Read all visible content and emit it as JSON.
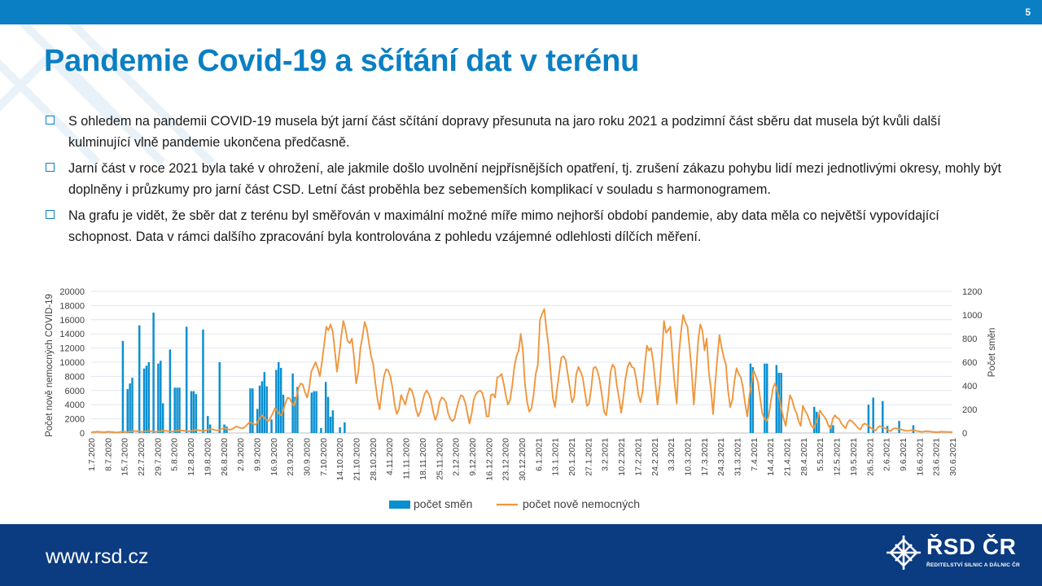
{
  "slide": {
    "page_number": "5",
    "title": "Pandemie Covid-19 a sčítání dat v terénu"
  },
  "bullets": [
    "S ohledem na pandemii COVID-19 musela být jarní část sčítání dopravy přesunuta na jaro roku 2021 a podzimní část sběru dat musela být kvůli další kulminující vlně pandemie ukončena předčasně.",
    "Jarní část v roce 2021 byla také v ohrožení, ale jakmile došlo uvolnění nejpřísnějších opatření, tj. zrušení zákazu pohybu lidí mezi jednotlivými okresy, mohly být doplněny i průzkumy pro jarní část CSD. Letní část proběhla bez sebemenších komplikací v souladu s harmonogramem.",
    "Na grafu je vidět, že sběr dat z terénu byl směřován v maximální možné míře mimo nejhorší období pandemie, aby data měla co největší vypovídající schopnost. Data v rámci dalšího zpracování byla kontrolována z pohledu vzájemné odlehlosti dílčích měření."
  ],
  "chart_data": {
    "type": "bar",
    "left_axis": {
      "label": "Počet nově nemocných COVID-19",
      "ticks": [
        "20000",
        "18000",
        "16000",
        "14000",
        "12000",
        "10000",
        "8000",
        "6000",
        "4000",
        "2000",
        "0"
      ],
      "range": [
        0,
        20000
      ]
    },
    "right_axis": {
      "label": "Počet směn",
      "ticks": [
        "1200",
        "1000",
        "800",
        "600",
        "400",
        "200",
        "0"
      ],
      "range": [
        0,
        1200
      ]
    },
    "x_labels": [
      "1.7.2020",
      "8.7.2020",
      "15.7.2020",
      "22.7.2020",
      "29.7.2020",
      "5.8.2020",
      "12.8.2020",
      "19.8.2020",
      "26.8.2020",
      "2.9.2020",
      "9.9.2020",
      "16.9.2020",
      "23.9.2020",
      "30.9.2020",
      "7.10.2020",
      "14.10.2020",
      "21.10.2020",
      "28.10.2020",
      "4.11.2020",
      "11.11.2020",
      "18.11.2020",
      "25.11.2020",
      "2.12.2020",
      "9.12.2020",
      "16.12.2020",
      "23.12.2020",
      "30.12.2020",
      "6.1.2021",
      "13.1.2021",
      "20.1.2021",
      "27.1.2021",
      "3.2.2021",
      "10.2.2021",
      "17.2.2021",
      "24.2.2021",
      "3.3.2021",
      "10.3.2021",
      "17.3.2021",
      "24.3.2021",
      "31.3.2021",
      "7.4.2021",
      "14.4.2021",
      "21.4.2021",
      "28.4.2021",
      "5.5.2021",
      "12.5.2021",
      "19.5.2021",
      "26.5.2021",
      "2.6.2021",
      "9.6.2021",
      "16.6.2021",
      "23.6.2021",
      "30.6.2021"
    ],
    "grid": true,
    "legend_position": "bottom",
    "legend": [
      {
        "name": "počet směn",
        "color": "#0a8fd0"
      },
      {
        "name": "počet nově nemocných",
        "color": "#f0963c"
      }
    ],
    "bars_x_values": [
      0,
      0,
      0,
      0,
      0,
      0,
      0,
      0,
      0,
      0,
      0,
      0,
      0,
      13000,
      0,
      6200,
      7000,
      7800,
      0,
      0,
      15200,
      0,
      9100,
      9500,
      10000,
      0,
      17000,
      0,
      9800,
      10200,
      4200,
      0,
      0,
      11800,
      0,
      6400,
      6400,
      6400,
      0,
      0,
      15000,
      0,
      5900,
      5900,
      5500,
      0,
      0,
      14600,
      0,
      2400,
      1200,
      0,
      0,
      0,
      10000,
      0,
      1200,
      900,
      0,
      0,
      0,
      0,
      0,
      0,
      0,
      0,
      0,
      6300,
      6300,
      0,
      3400,
      6700,
      7300,
      8600,
      6600,
      0,
      1900,
      0,
      8900,
      10000,
      9200,
      5400,
      0,
      0,
      0,
      8400,
      5100,
      6500,
      0,
      0,
      0,
      0,
      0,
      5700,
      5900,
      5900,
      0,
      700,
      0,
      7200,
      5100,
      2300,
      3200,
      0,
      0,
      800,
      0,
      1500
    ],
    "bars_x_values_apr_jun": [
      9800,
      9300,
      0,
      0,
      0,
      0,
      9800,
      9800,
      0,
      0,
      0,
      9600,
      8500,
      8500,
      0,
      0,
      0,
      0,
      0,
      0,
      0,
      0,
      0,
      0,
      0,
      0,
      0,
      3700,
      3000,
      2600,
      0,
      0,
      0,
      0,
      1100,
      1100,
      0,
      0,
      0,
      0,
      0,
      0,
      0,
      0,
      0,
      0,
      0,
      0,
      0,
      0,
      4000,
      0,
      5000,
      0,
      0,
      0,
      4500,
      0,
      1000,
      0,
      0,
      0,
      0,
      1700,
      0,
      0,
      0,
      0,
      0,
      1100,
      0,
      0
    ],
    "line_values": [
      5,
      8,
      10,
      12,
      10,
      8,
      6,
      9,
      12,
      10,
      8,
      6,
      5,
      7,
      9,
      11,
      10,
      8,
      12,
      15,
      18,
      16,
      14,
      12,
      10,
      14,
      16,
      18,
      15,
      13,
      10,
      12,
      15,
      18,
      20,
      18,
      16,
      14,
      12,
      16,
      18,
      20,
      22,
      20,
      18,
      16,
      14,
      18,
      22,
      26,
      24,
      22,
      20,
      18,
      25,
      30,
      35,
      30,
      25,
      22,
      26,
      34,
      40,
      36,
      30,
      28,
      34,
      45,
      55,
      48,
      42,
      40,
      52,
      70,
      90,
      85,
      75,
      70,
      95,
      130,
      150,
      130,
      110,
      100,
      130,
      170,
      210,
      190,
      160,
      150,
      200,
      260,
      300,
      290,
      250,
      230,
      300,
      380,
      420,
      410,
      350,
      300,
      380,
      520,
      560,
      600,
      550,
      480,
      600,
      750,
      900,
      870,
      920,
      860,
      700,
      520,
      650,
      820,
      950,
      880,
      780,
      760,
      800,
      640,
      420,
      520,
      720,
      820,
      940,
      880,
      760,
      650,
      580,
      420,
      280,
      200,
      350,
      480,
      540,
      530,
      480,
      380,
      240,
      160,
      200,
      320,
      280,
      240,
      320,
      380,
      360,
      300,
      200,
      140,
      180,
      260,
      330,
      360,
      330,
      280,
      180,
      110,
      160,
      260,
      300,
      290,
      260,
      170,
      120,
      100,
      120,
      200,
      270,
      320,
      310,
      260,
      170,
      80,
      160,
      280,
      330,
      350,
      360,
      340,
      270,
      140,
      140,
      320,
      330,
      300,
      470,
      480,
      500,
      420,
      320,
      240,
      280,
      400,
      560,
      650,
      700,
      840,
      700,
      410,
      260,
      180,
      210,
      320,
      500,
      580,
      960,
      1010,
      1050,
      880,
      740,
      520,
      300,
      220,
      370,
      510,
      640,
      650,
      620,
      500,
      380,
      260,
      300,
      500,
      560,
      520,
      470,
      350,
      230,
      250,
      380,
      550,
      560,
      520,
      440,
      320,
      180,
      150,
      300,
      520,
      580,
      550,
      400,
      290,
      170,
      300,
      460,
      560,
      600,
      560,
      550,
      460,
      330,
      260,
      350,
      560,
      740,
      700,
      720,
      600,
      420,
      240,
      400,
      650,
      950,
      850,
      870,
      900,
      640,
      420,
      250,
      660,
      860,
      1000,
      940,
      900,
      720,
      520,
      240,
      500,
      780,
      920,
      870,
      700,
      800,
      520,
      370,
      160,
      420,
      640,
      830,
      720,
      640,
      580,
      360,
      220,
      280,
      440,
      550,
      500,
      470,
      380,
      250,
      140,
      320,
      420,
      530,
      480,
      430,
      300,
      170,
      120,
      100,
      140,
      260,
      380,
      420,
      360,
      300,
      200,
      120,
      60,
      200,
      320,
      280,
      210,
      170,
      100,
      60,
      230,
      190,
      160,
      110,
      60,
      40,
      80,
      130,
      190,
      160,
      140,
      110,
      60,
      40,
      120,
      150,
      130,
      120,
      80,
      60,
      40,
      90,
      110,
      100,
      80,
      60,
      40,
      30,
      70,
      80,
      70,
      60,
      40,
      30,
      20,
      45,
      60,
      50,
      45,
      35,
      25,
      15,
      35,
      40,
      38,
      35,
      30,
      25,
      20,
      18,
      20,
      25,
      22,
      18,
      15,
      12,
      10,
      14,
      15,
      13,
      12,
      10,
      8,
      6,
      10,
      12,
      11,
      10,
      9,
      8,
      7
    ]
  },
  "footer": {
    "url": "www.rsd.cz",
    "logo_text": "ŘSD ČR",
    "logo_subtext": "ŘEDITELSTVÍ SILNIC A DÁLNIC ČR"
  }
}
